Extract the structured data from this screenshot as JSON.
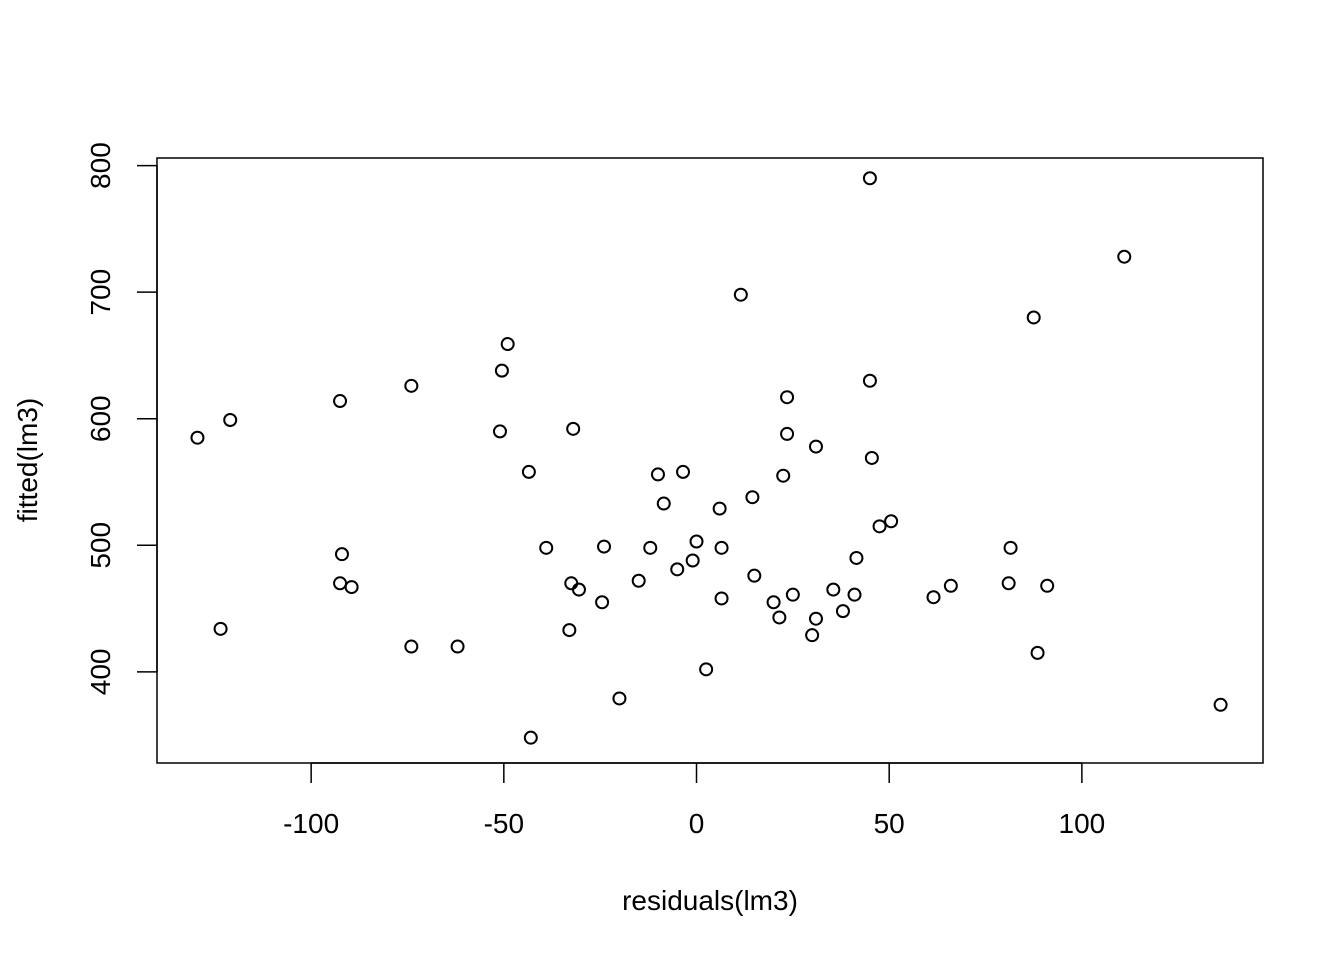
{
  "chart_data": {
    "type": "scatter",
    "title": "",
    "xlabel": "residuals(lm3)",
    "ylabel": "fitted(lm3)",
    "xlim": [
      -140,
      147
    ],
    "ylim": [
      328,
      806
    ],
    "x_ticks": [
      -100,
      -50,
      0,
      50,
      100
    ],
    "x_tick_labels": [
      "-100",
      "-50",
      "0",
      "50",
      "100"
    ],
    "y_ticks": [
      400,
      500,
      600,
      700,
      800
    ],
    "y_tick_labels": [
      "400",
      "500",
      "600",
      "700",
      "800"
    ],
    "grid": false,
    "legend": "none",
    "marker": "open-circle",
    "points": [
      {
        "x": -129.5,
        "y": 585
      },
      {
        "x": -121,
        "y": 599
      },
      {
        "x": -123.5,
        "y": 434
      },
      {
        "x": -92.5,
        "y": 614
      },
      {
        "x": -92,
        "y": 493
      },
      {
        "x": -92.5,
        "y": 470
      },
      {
        "x": -89.5,
        "y": 467
      },
      {
        "x": -74,
        "y": 626
      },
      {
        "x": -74,
        "y": 420
      },
      {
        "x": -62,
        "y": 420
      },
      {
        "x": -49,
        "y": 659
      },
      {
        "x": -50.5,
        "y": 638
      },
      {
        "x": -51,
        "y": 590
      },
      {
        "x": -43.5,
        "y": 558
      },
      {
        "x": -39,
        "y": 498
      },
      {
        "x": -43,
        "y": 348
      },
      {
        "x": -32,
        "y": 592
      },
      {
        "x": -32.5,
        "y": 470
      },
      {
        "x": -30.5,
        "y": 465
      },
      {
        "x": -33,
        "y": 433
      },
      {
        "x": -24,
        "y": 499
      },
      {
        "x": -24.5,
        "y": 455
      },
      {
        "x": -20,
        "y": 379
      },
      {
        "x": -15,
        "y": 472
      },
      {
        "x": -12,
        "y": 498
      },
      {
        "x": -10,
        "y": 556
      },
      {
        "x": -8.5,
        "y": 533
      },
      {
        "x": -5,
        "y": 481
      },
      {
        "x": -3.5,
        "y": 558
      },
      {
        "x": -1,
        "y": 488
      },
      {
        "x": 0,
        "y": 503
      },
      {
        "x": 2.5,
        "y": 402
      },
      {
        "x": 6,
        "y": 529
      },
      {
        "x": 6.5,
        "y": 498
      },
      {
        "x": 6.5,
        "y": 458
      },
      {
        "x": 11.5,
        "y": 698
      },
      {
        "x": 14.5,
        "y": 538
      },
      {
        "x": 15,
        "y": 476
      },
      {
        "x": 20,
        "y": 455
      },
      {
        "x": 21.5,
        "y": 443
      },
      {
        "x": 22.5,
        "y": 555
      },
      {
        "x": 23.5,
        "y": 617
      },
      {
        "x": 23.5,
        "y": 588
      },
      {
        "x": 25,
        "y": 461
      },
      {
        "x": 30,
        "y": 429
      },
      {
        "x": 31,
        "y": 442
      },
      {
        "x": 31,
        "y": 578
      },
      {
        "x": 35.5,
        "y": 465
      },
      {
        "x": 38,
        "y": 448
      },
      {
        "x": 41,
        "y": 461
      },
      {
        "x": 41.5,
        "y": 490
      },
      {
        "x": 45,
        "y": 790
      },
      {
        "x": 45,
        "y": 630
      },
      {
        "x": 45.5,
        "y": 569
      },
      {
        "x": 47.5,
        "y": 515
      },
      {
        "x": 50.5,
        "y": 519
      },
      {
        "x": 61.5,
        "y": 459
      },
      {
        "x": 66,
        "y": 468
      },
      {
        "x": 81,
        "y": 470
      },
      {
        "x": 81.5,
        "y": 498
      },
      {
        "x": 87.5,
        "y": 680
      },
      {
        "x": 88.5,
        "y": 415
      },
      {
        "x": 91,
        "y": 468
      },
      {
        "x": 111,
        "y": 728
      },
      {
        "x": 136,
        "y": 374
      }
    ]
  }
}
